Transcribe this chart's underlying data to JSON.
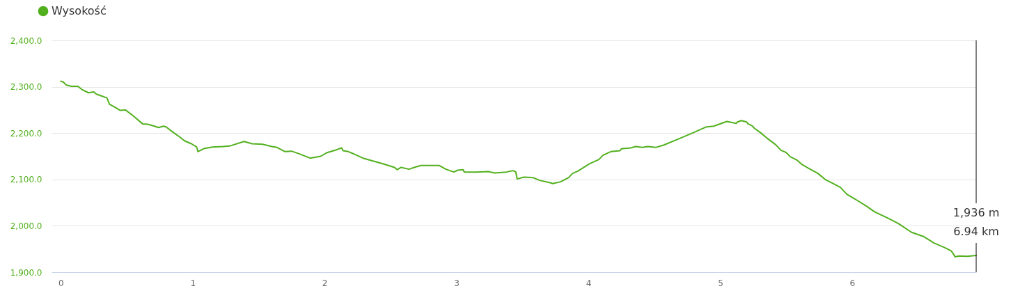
{
  "chart_data": {
    "type": "line",
    "legend": "top left",
    "grid": "y",
    "marker": "none",
    "line_style": "solid",
    "xlim": [
      -0.07,
      6.94
    ],
    "xticks": [
      0,
      1,
      2,
      3,
      4,
      5,
      6
    ],
    "ylim": [
      1900,
      2400
    ],
    "yticks": [
      {
        "value": 1900,
        "label": "1,900.0"
      },
      {
        "value": 2000,
        "label": "2,000.0"
      },
      {
        "value": 2100,
        "label": "2,100.0"
      },
      {
        "value": 2200,
        "label": "2,200.0"
      },
      {
        "value": 2300,
        "label": "2,300.0"
      },
      {
        "value": 2400,
        "label": "2,400.0"
      }
    ],
    "x": [
      0,
      0.02,
      0.04,
      0.08,
      0.13,
      0.16,
      0.21,
      0.25,
      0.27,
      0.3,
      0.35,
      0.37,
      0.41,
      0.45,
      0.49,
      0.55,
      0.62,
      0.66,
      0.71,
      0.74,
      0.78,
      0.8,
      0.85,
      0.9,
      0.94,
      0.99,
      1.03,
      1.04,
      1.09,
      1.15,
      1.23,
      1.28,
      1.39,
      1.45,
      1.53,
      1.6,
      1.64,
      1.7,
      1.75,
      1.81,
      1.89,
      1.97,
      2.02,
      2.09,
      2.13,
      2.14,
      2.18,
      2.23,
      2.3,
      2.39,
      2.45,
      2.53,
      2.55,
      2.58,
      2.64,
      2.68,
      2.73,
      2.82,
      2.87,
      2.92,
      2.98,
      3.01,
      3.05,
      3.06,
      3.15,
      3.24,
      3.29,
      3.38,
      3.43,
      3.45,
      3.46,
      3.51,
      3.58,
      3.63,
      3.71,
      3.73,
      3.79,
      3.85,
      3.88,
      3.92,
      4.01,
      4.08,
      4.11,
      4.17,
      4.24,
      4.25,
      4.32,
      4.36,
      4.41,
      4.45,
      4.51,
      4.57,
      4.68,
      4.78,
      4.89,
      4.95,
      5.05,
      5.07,
      5.12,
      5.13,
      5.16,
      5.2,
      5.21,
      5.24,
      5.26,
      5.3,
      5.35,
      5.42,
      5.46,
      5.5,
      5.53,
      5.58,
      5.62,
      5.67,
      5.74,
      5.8,
      5.85,
      5.91,
      5.96,
      6.02,
      6.11,
      6.17,
      6.26,
      6.35,
      6.45,
      6.54,
      6.62,
      6.7,
      6.75,
      6.77,
      6.78,
      6.81,
      6.87,
      6.94
    ],
    "series": [
      {
        "name": "Wysokość",
        "color": "#52b01e",
        "values": [
          2312,
          2310,
          2304,
          2301,
          2301,
          2294,
          2287,
          2289,
          2284,
          2281,
          2276,
          2262,
          2256,
          2249,
          2250,
          2237,
          2220,
          2219,
          2215,
          2212,
          2215,
          2213,
          2202,
          2192,
          2183,
          2177,
          2170,
          2160,
          2167,
          2170,
          2171,
          2172,
          2182,
          2177,
          2176,
          2171,
          2169,
          2160,
          2161,
          2155,
          2146,
          2150,
          2158,
          2164,
          2168,
          2162,
          2160,
          2154,
          2145,
          2138,
          2133,
          2126,
          2121,
          2126,
          2122,
          2126,
          2130,
          2130,
          2130,
          2122,
          2116,
          2120,
          2121,
          2116,
          2116,
          2117,
          2114,
          2116,
          2119,
          2116,
          2101,
          2105,
          2104,
          2098,
          2093,
          2091,
          2095,
          2104,
          2113,
          2118,
          2134,
          2143,
          2152,
          2160,
          2162,
          2166,
          2168,
          2171,
          2169,
          2171,
          2169,
          2174,
          2187,
          2199,
          2213,
          2215,
          2225,
          2224,
          2221,
          2224,
          2227,
          2224,
          2220,
          2216,
          2210,
          2202,
          2190,
          2175,
          2163,
          2158,
          2149,
          2142,
          2132,
          2124,
          2113,
          2099,
          2092,
          2083,
          2068,
          2058,
          2042,
          2030,
          2018,
          2005,
          1986,
          1977,
          1963,
          1953,
          1946,
          1938,
          1933,
          1935,
          1934,
          1936
        ]
      }
    ],
    "ref_lines": [
      {
        "axis": "x",
        "value": 6.94,
        "color": "#000000"
      }
    ],
    "annotations": [
      "1,936 m",
      "6.94 km"
    ]
  }
}
